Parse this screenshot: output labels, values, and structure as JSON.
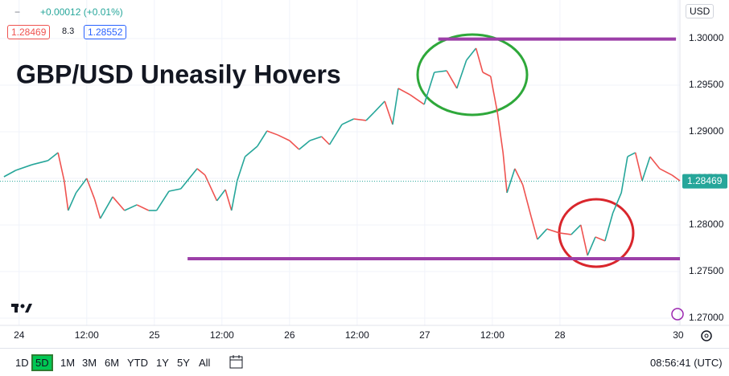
{
  "chart_data": {
    "type": "line",
    "title": "GBP/USD Uneasily Hovers",
    "header": {
      "change": "+0.00012 (+0.01%)",
      "bid": "1.28469",
      "spread": "8.3",
      "ask": "1.28552",
      "currency": "USD"
    },
    "x": [
      -2.7,
      -0.6,
      2.3,
      5.1,
      6.9,
      8,
      8.7,
      10.1,
      12,
      13.4,
      14.4,
      16.6,
      18.7,
      20.9,
      23,
      24.4,
      26.6,
      28.7,
      31.6,
      33,
      35.1,
      36.6,
      37.7,
      38.7,
      40.1,
      42.3,
      44,
      45.9,
      48,
      49.7,
      51.6,
      53.7,
      55.1,
      57.3,
      59.4,
      61.6,
      63,
      64.9,
      66.3,
      67.3,
      69.4,
      71.9,
      73.7,
      75.9,
      77.7,
      79.4,
      81.1,
      82.3,
      83.7,
      84.9,
      85.9,
      86.6,
      88,
      89.4,
      90.9,
      92,
      93.7,
      95.9,
      98,
      99.7,
      100.9,
      102.3,
      104,
      105.4,
      106.9,
      108,
      109.4,
      110.6,
      112,
      113.7,
      115.9,
      117.3
    ],
    "series": [
      {
        "up_color": "#26a69a",
        "down_color": "#ef5350",
        "values": [
          1.28517,
          1.28586,
          1.28647,
          1.2869,
          1.28776,
          1.28474,
          1.28155,
          1.28345,
          1.285,
          1.28276,
          1.28069,
          1.28302,
          1.28155,
          1.28216,
          1.28155,
          1.28155,
          1.28362,
          1.28388,
          1.28604,
          1.28535,
          1.28259,
          1.28379,
          1.28155,
          1.28474,
          1.28733,
          1.28845,
          1.29009,
          1.28966,
          1.28905,
          1.2881,
          1.28905,
          1.28948,
          1.28862,
          1.29078,
          1.29138,
          1.29121,
          1.29207,
          1.29328,
          1.29078,
          1.29466,
          1.29397,
          1.29293,
          1.29638,
          1.29655,
          1.29466,
          1.29767,
          1.29897,
          1.29638,
          1.29595,
          1.29207,
          1.28776,
          1.28345,
          1.28604,
          1.28431,
          1.28086,
          1.27845,
          1.27957,
          1.27914,
          1.27897,
          1.28,
          1.27673,
          1.27871,
          1.27828,
          1.28129,
          1.28345,
          1.28733,
          1.28776,
          1.28474,
          1.28733,
          1.28604,
          1.28535,
          1.28474
        ]
      }
    ],
    "xlim": [
      -3.4,
      117.3
    ],
    "ylim": [
      1.26922,
      1.30414
    ],
    "xticks": [
      {
        "value": 0,
        "label": "24"
      },
      {
        "value": 12,
        "label": "12:00"
      },
      {
        "value": 24,
        "label": "25"
      },
      {
        "value": 36,
        "label": "12:00"
      },
      {
        "value": 48,
        "label": "26"
      },
      {
        "value": 60,
        "label": "12:00"
      },
      {
        "value": 72,
        "label": "27"
      },
      {
        "value": 84,
        "label": "12:00"
      },
      {
        "value": 96,
        "label": "28"
      },
      {
        "value": 117,
        "label": "30"
      }
    ],
    "yticks": [
      {
        "value": 1.27,
        "label": "1.27000"
      },
      {
        "value": 1.275,
        "label": "1.27500"
      },
      {
        "value": 1.28,
        "label": "1.28000"
      },
      {
        "value": 1.285,
        "label": "1.28500"
      },
      {
        "value": 1.29,
        "label": "1.29000"
      },
      {
        "value": 1.295,
        "label": "1.29500"
      },
      {
        "value": 1.3,
        "label": "1.30000"
      }
    ],
    "grid": true,
    "last_price": {
      "value": 1.28469,
      "label": "1.28469",
      "color": "#26a69a"
    },
    "levels": [
      {
        "value": 1.29995,
        "x": [
          74.4,
          116.6
        ],
        "color": "#9c3fa8"
      },
      {
        "value": 1.27638,
        "x": [
          29.9,
          117.3
        ],
        "color": "#9c3fa8"
      }
    ],
    "toolbar": {
      "ranges": [
        "1D",
        "5D",
        "1M",
        "3M",
        "6M",
        "YTD",
        "1Y",
        "5Y",
        "All"
      ],
      "selected": 1,
      "clock": "08:56:41 (UTC)"
    }
  }
}
